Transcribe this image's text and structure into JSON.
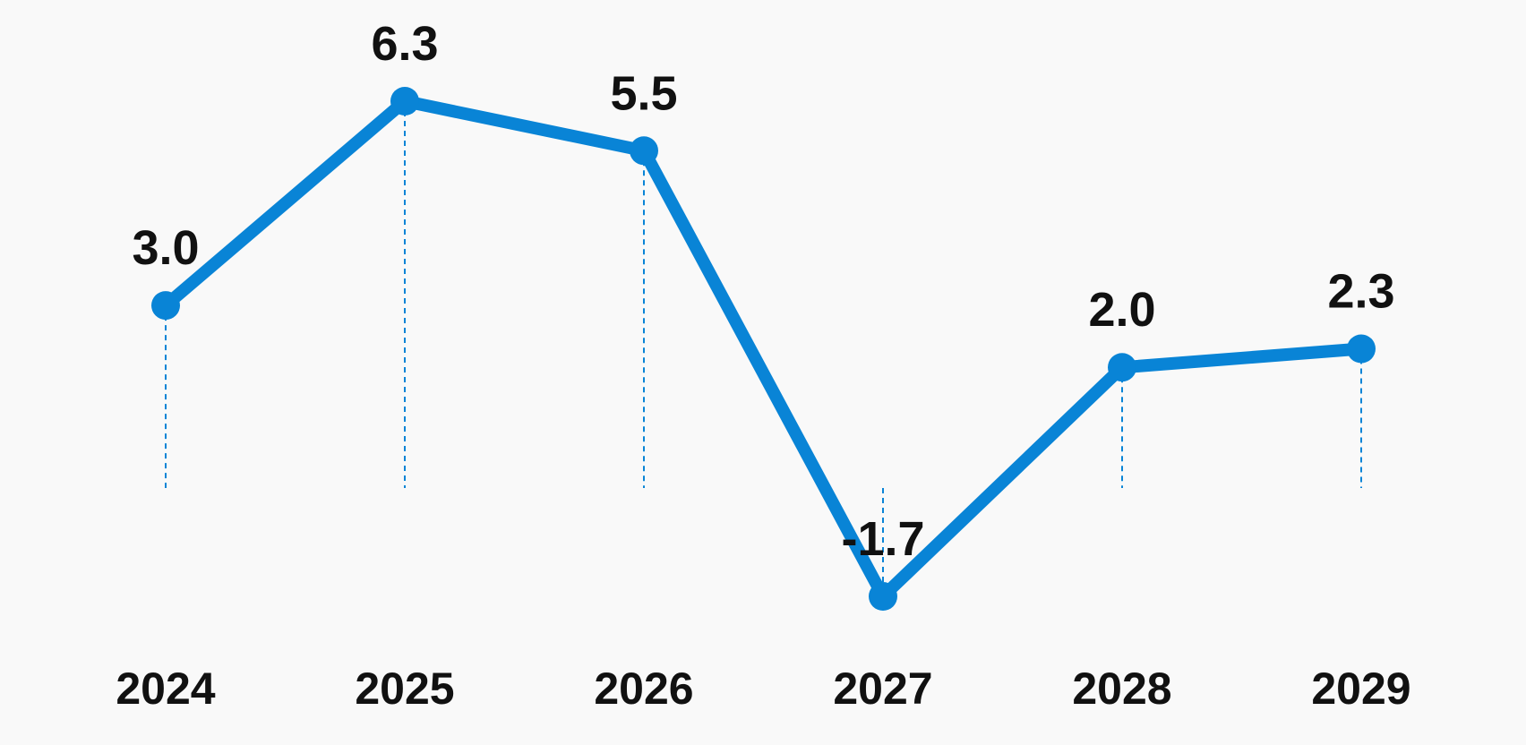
{
  "chart_data": {
    "type": "line",
    "x": [
      "2024",
      "2025",
      "2026",
      "2027",
      "2028",
      "2029"
    ],
    "series": [
      {
        "values": [
          3.0,
          6.3,
          5.5,
          -1.7,
          2.0,
          2.3
        ]
      }
    ],
    "data_labels": [
      "3.0",
      "6.3",
      "5.5",
      "-1.7",
      "2.0",
      "2.3"
    ],
    "title": "",
    "xlabel": "",
    "ylabel": "",
    "ylim": [
      -1.7,
      6.3
    ],
    "grid": false,
    "legend": "none",
    "colors": {
      "line": "#0984d6",
      "drop_line": "#0984d6",
      "label": "#111111",
      "background": "#f9f9f9"
    }
  }
}
